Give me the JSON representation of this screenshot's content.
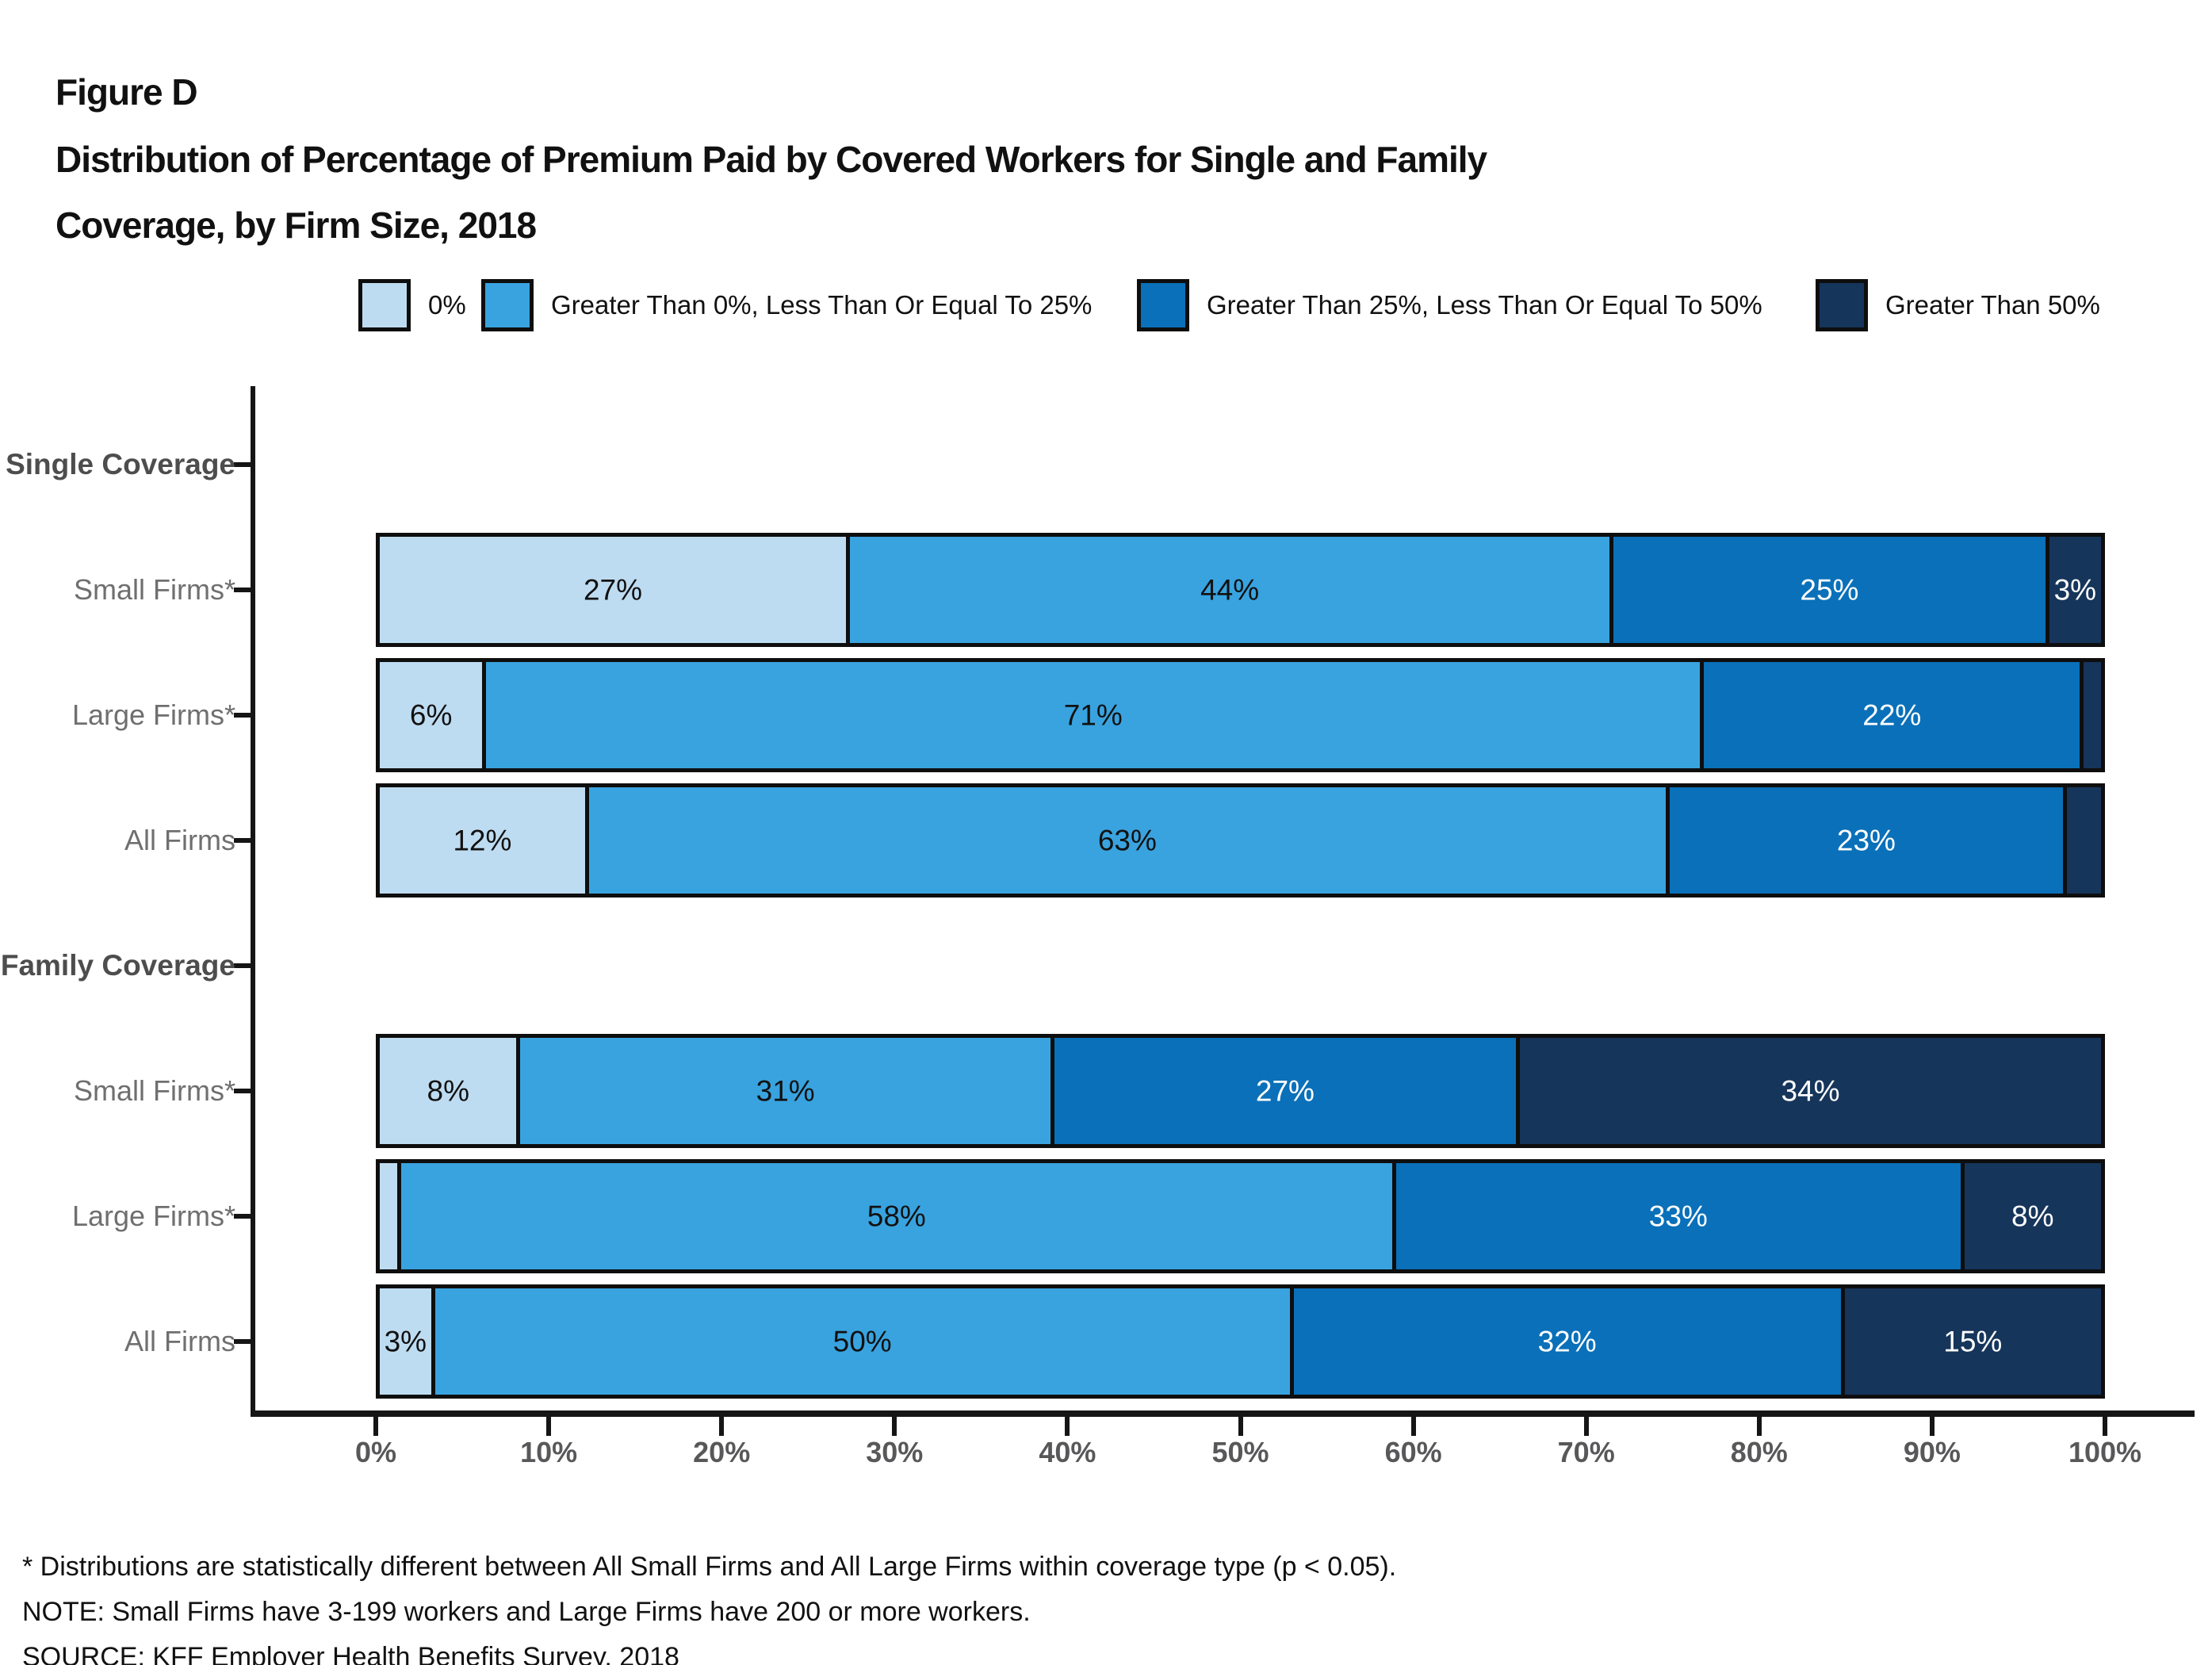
{
  "figure_label": "Figure D",
  "title_line1": "Distribution of Percentage of Premium Paid by Covered Workers for Single and Family",
  "title_line2": "Coverage, by Firm Size, 2018",
  "legend": [
    {
      "label": "0%",
      "color": "#BEDCF1"
    },
    {
      "label": "Greater Than 0%, Less Than Or Equal To 25%",
      "color": "#39A3DF"
    },
    {
      "label": "Greater Than 25%, Less Than Or Equal To 50%",
      "color": "#0A70B9"
    },
    {
      "label": "Greater Than 50%",
      "color": "#16355B"
    }
  ],
  "chart_data": {
    "type": "bar",
    "orientation": "horizontal",
    "stacked": true,
    "title": "Distribution of Percentage of Premium Paid by Covered Workers for Single and Family Coverage, by Firm Size, 2018",
    "x_axis": {
      "ticks": [
        "0%",
        "10%",
        "20%",
        "30%",
        "40%",
        "50%",
        "60%",
        "70%",
        "80%",
        "90%",
        "100%"
      ],
      "range": [
        0,
        100
      ]
    },
    "series_names": [
      "0%",
      "Greater Than 0%, Less Than Or Equal To 25%",
      "Greater Than 25%, Less Than Or Equal To 50%",
      "Greater Than 50%"
    ],
    "series_colors": [
      "#BEDCF1",
      "#39A3DF",
      "#0A70B9",
      "#16355B"
    ],
    "label_text_colors": [
      "#111111",
      "#111111",
      "#FFFFFF",
      "#FFFFFF"
    ],
    "legend_position": "top",
    "grid": false,
    "rows": [
      {
        "id": "single-coverage",
        "label": "Single Coverage",
        "header": true
      },
      {
        "id": "single-small-firms",
        "label": "Small Firms*",
        "values": [
          27,
          44,
          25,
          3
        ],
        "labels": [
          "27%",
          "44%",
          "25%",
          "3%"
        ]
      },
      {
        "id": "single-large-firms",
        "label": "Large Firms*",
        "values": [
          6,
          71,
          22,
          1
        ],
        "labels": [
          "6%",
          "71%",
          "22%",
          ""
        ]
      },
      {
        "id": "single-all-firms",
        "label": "All Firms",
        "values": [
          12,
          63,
          23,
          2
        ],
        "labels": [
          "12%",
          "63%",
          "23%",
          ""
        ]
      },
      {
        "id": "family-coverage",
        "label": "Family Coverage",
        "header": true
      },
      {
        "id": "family-small-firms",
        "label": "Small Firms*",
        "values": [
          8,
          31,
          27,
          34
        ],
        "labels": [
          "8%",
          "31%",
          "27%",
          "34%"
        ]
      },
      {
        "id": "family-large-firms",
        "label": "Large Firms*",
        "values": [
          1,
          58,
          33,
          8
        ],
        "labels": [
          "",
          "58%",
          "33%",
          "8%"
        ]
      },
      {
        "id": "family-all-firms",
        "label": "All Firms",
        "values": [
          3,
          50,
          32,
          15
        ],
        "labels": [
          "3%",
          "50%",
          "32%",
          "15%"
        ]
      }
    ]
  },
  "footnotes": [
    "* Distributions are statistically different between All Small Firms and All Large Firms within coverage type (p < 0.05).",
    "NOTE: Small Firms have 3-199 workers and Large Firms have 200 or more workers.",
    "SOURCE: KFF Employer Health Benefits Survey, 2018"
  ]
}
